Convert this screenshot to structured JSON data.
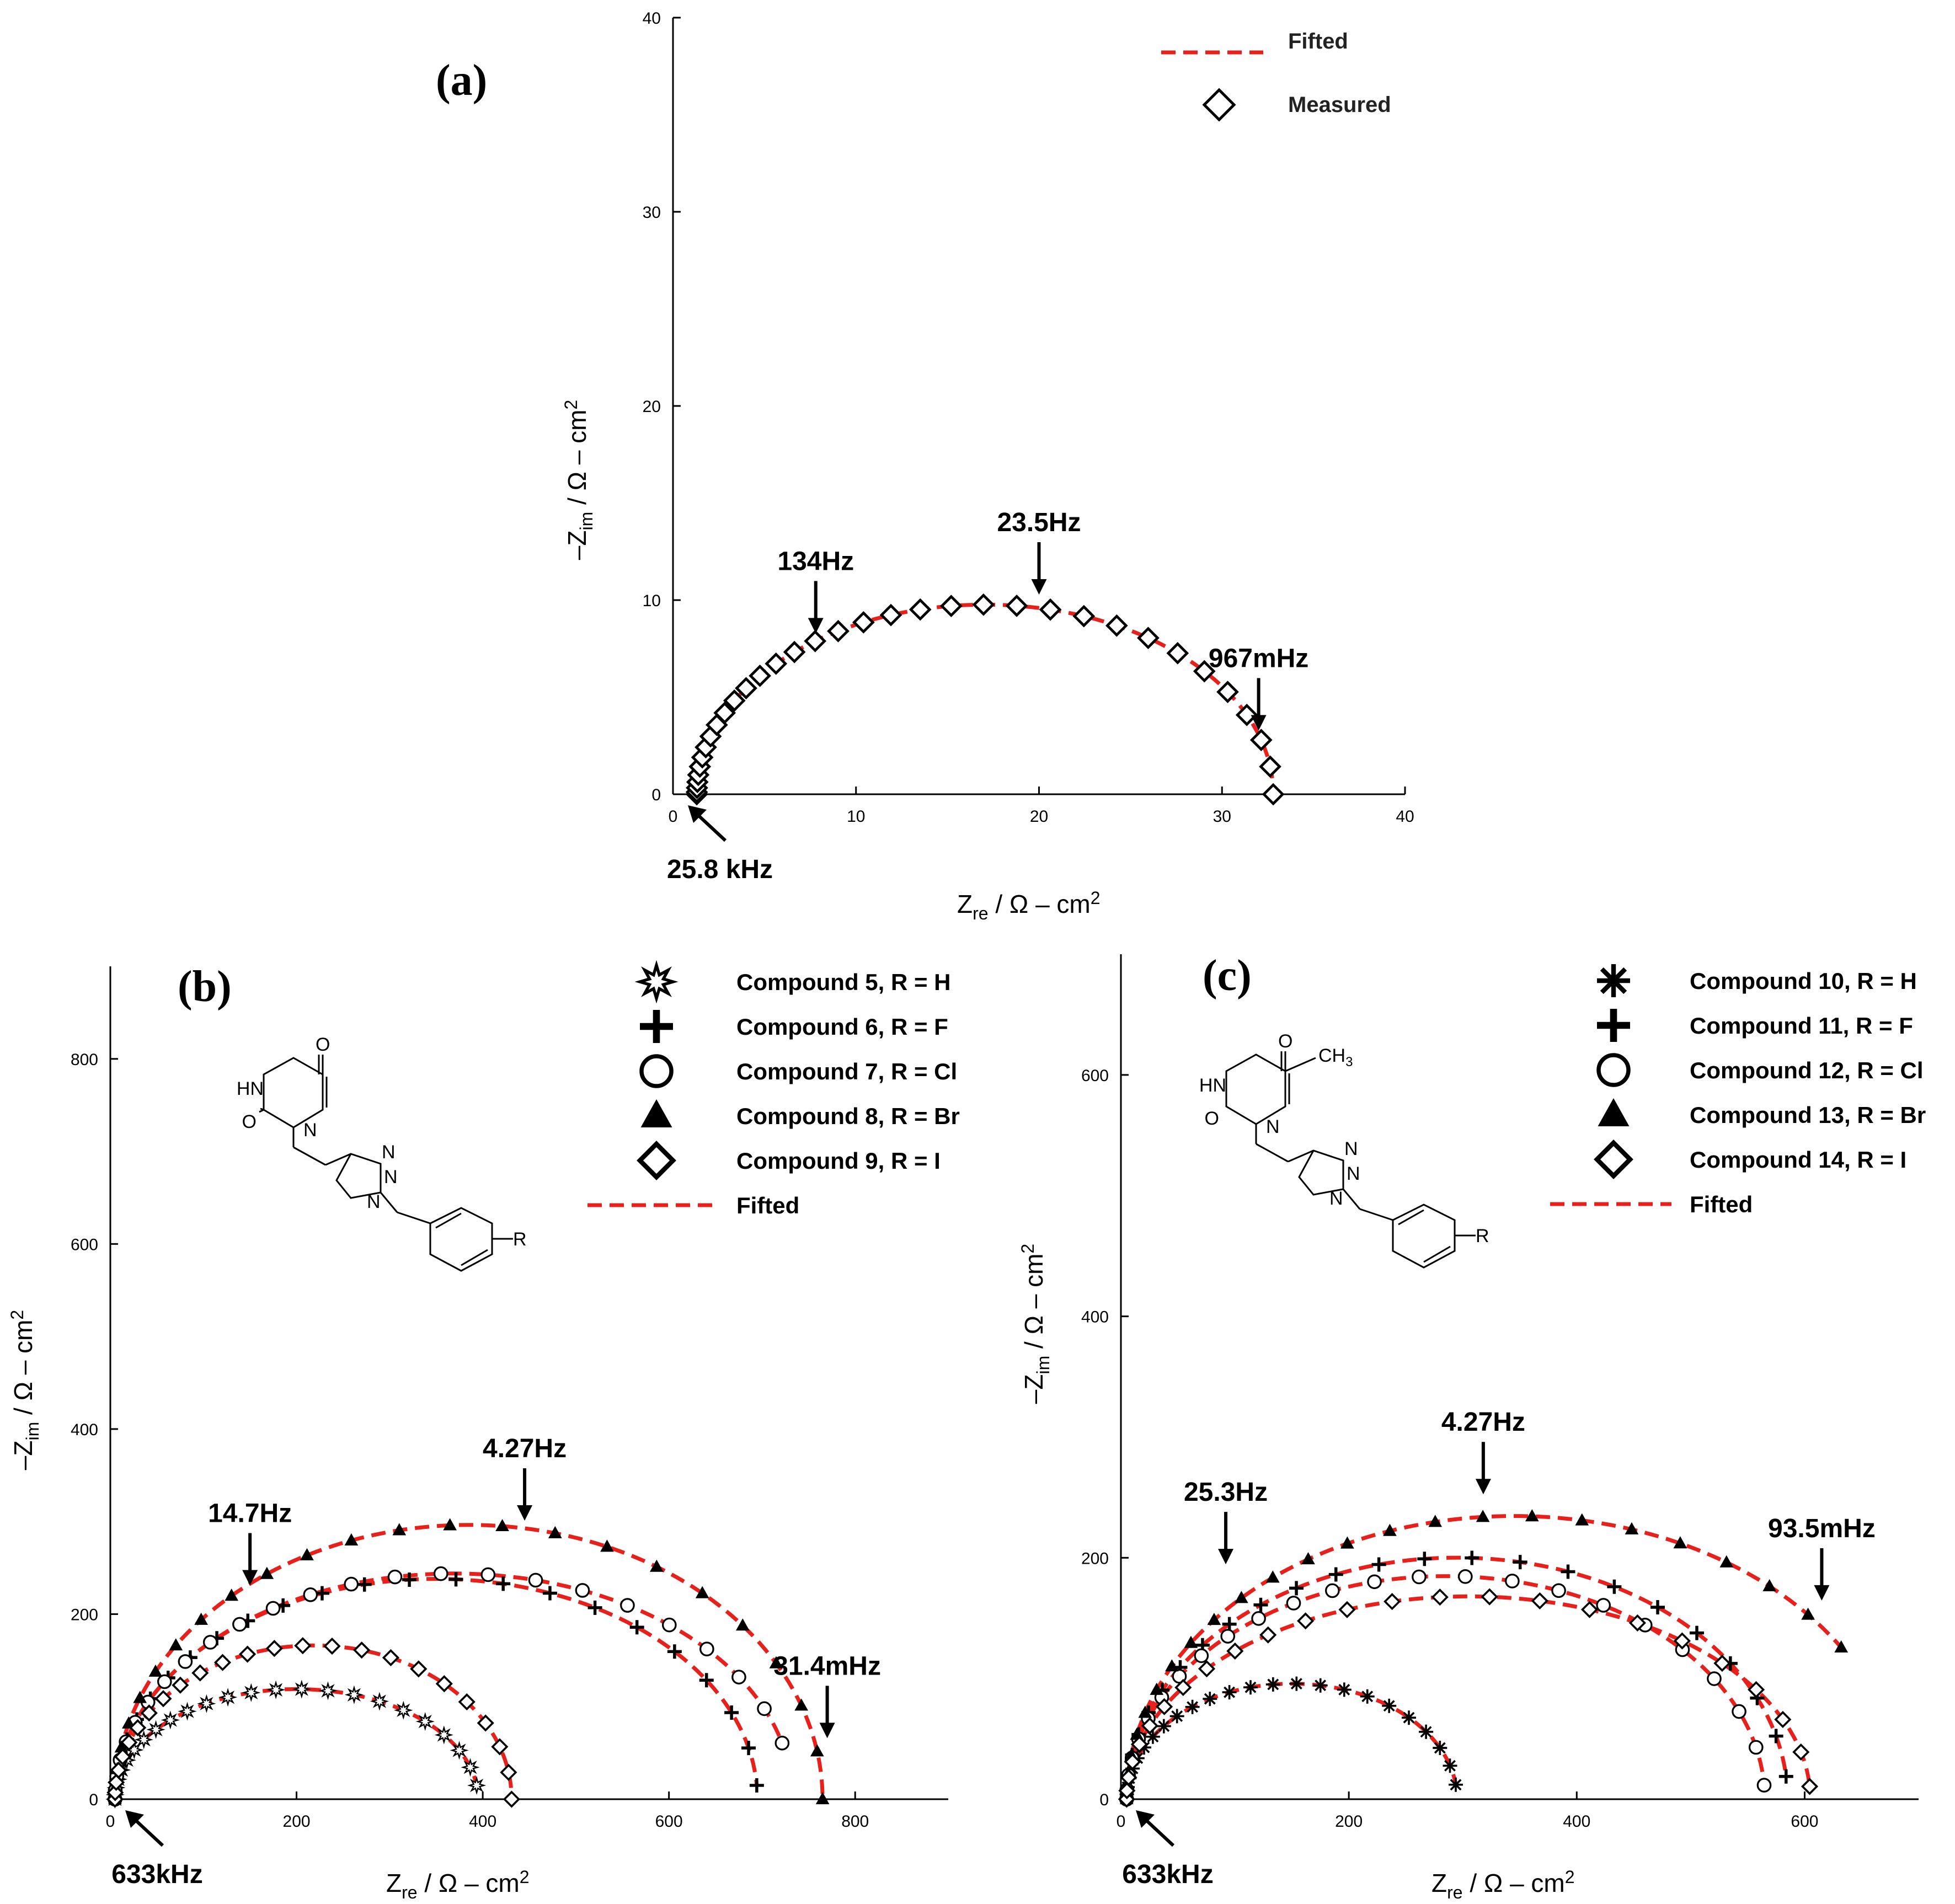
{
  "figure": {
    "panels": [
      {
        "id": "a",
        "label": "(a)",
        "xlabel": {
          "main": "Z",
          "sub": "re",
          "rest": " / Ω – cm",
          "sup": "2"
        },
        "ylabel": {
          "main": "–Z",
          "sub": "im",
          "rest": " / Ω – cm",
          "sup": "2"
        },
        "legend": [
          {
            "kind": "fit",
            "label": "Fifted"
          },
          {
            "kind": "marker",
            "marker": "diamond",
            "label": "Measured"
          }
        ]
      },
      {
        "id": "b",
        "label": "(b)",
        "xlabel": {
          "main": "Z",
          "sub": "re",
          "rest": " / Ω – cm",
          "sup": "2"
        },
        "ylabel": {
          "main": "–Z",
          "sub": "im",
          "rest": " / Ω – cm",
          "sup": "2"
        },
        "legend": [
          {
            "kind": "marker",
            "marker": "star",
            "label": "Compound 5, R = H"
          },
          {
            "kind": "marker",
            "marker": "plus",
            "label": "Compound 6, R = F"
          },
          {
            "kind": "marker",
            "marker": "circle",
            "label": "Compound 7, R = Cl"
          },
          {
            "kind": "marker",
            "marker": "triangle",
            "label": "Compound 8, R = Br"
          },
          {
            "kind": "marker",
            "marker": "diamond",
            "label": "Compound 9, R = I"
          },
          {
            "kind": "fit",
            "label": "Fifted"
          }
        ],
        "structure": {
          "labels": [
            "O",
            "HN",
            "O",
            "N",
            "N",
            "N",
            "N",
            "R"
          ]
        }
      },
      {
        "id": "c",
        "label": "(c)",
        "xlabel": {
          "main": "Z",
          "sub": "re",
          "rest": " / Ω – cm",
          "sup": "2"
        },
        "ylabel": {
          "main": "–Z",
          "sub": "im",
          "rest": " / Ω – cm",
          "sup": "2"
        },
        "legend": [
          {
            "kind": "marker",
            "marker": "asterisk",
            "label": "Compound 10, R = H"
          },
          {
            "kind": "marker",
            "marker": "plus",
            "label": "Compound 11, R = F"
          },
          {
            "kind": "marker",
            "marker": "circle",
            "label": "Compound 12, R = Cl"
          },
          {
            "kind": "marker",
            "marker": "triangle",
            "label": "Compound 13, R = Br"
          },
          {
            "kind": "marker",
            "marker": "diamond",
            "label": "Compound 14, R = I"
          },
          {
            "kind": "fit",
            "label": "Fifted"
          }
        ],
        "structure": {
          "labels": [
            "O",
            "HN",
            "O",
            "N",
            "N",
            "N",
            "N",
            "R"
          ],
          "methyl": {
            "main": "CH",
            "sub": "3"
          }
        }
      }
    ]
  },
  "chart_data": [
    {
      "type": "scatter",
      "title": "(a)",
      "xlabel": "Zre / Ω – cm2",
      "ylabel": "–Zim / Ω – cm2",
      "xlim": [
        0,
        40
      ],
      "ylim": [
        0,
        40
      ],
      "xticks": [
        0,
        10,
        20,
        30,
        40
      ],
      "yticks": [
        0,
        10,
        20,
        30,
        40
      ],
      "series": [
        {
          "name": "Measured",
          "marker": "diamond",
          "fit": {
            "type": "arc",
            "R0": 1.3,
            "Rct": 31.5,
            "depress": 0.62,
            "from": 0,
            "to": 1.0
          }
        }
      ],
      "annotations": [
        {
          "text": "134Hz",
          "x": 7.8,
          "y": 8.0,
          "dir": "down"
        },
        {
          "text": "23.5Hz",
          "x": 20.0,
          "y": 10.0,
          "dir": "down"
        },
        {
          "text": "967mHz",
          "x": 32.0,
          "y": 3.0,
          "dir": "down"
        },
        {
          "text": "25.8 kHz",
          "x": 1.8,
          "y": -0.5,
          "dir": "upleft"
        }
      ]
    },
    {
      "type": "scatter",
      "title": "(b)",
      "xlabel": "Zre / Ω – cm2",
      "ylabel": "–Zim / Ω – cm2",
      "xlim": [
        0,
        900
      ],
      "ylim": [
        0,
        900
      ],
      "xticks": [
        0,
        200,
        400,
        600,
        800
      ],
      "yticks": [
        0,
        200,
        400,
        600,
        800
      ],
      "series": [
        {
          "name": "Compound 5, R = H",
          "marker": "star",
          "fit": {
            "type": "arc",
            "R0": 5,
            "Rct": 390,
            "depress": 0.61,
            "from": 0,
            "to": 0.96
          }
        },
        {
          "name": "Compound 6, R = F",
          "marker": "plus",
          "fit": {
            "type": "arc",
            "R0": 5,
            "Rct": 690,
            "depress": 0.69,
            "from": 0,
            "to": 0.98
          }
        },
        {
          "name": "Compound 7, R = Cl",
          "marker": "circle",
          "fit": {
            "type": "arc",
            "R0": 5,
            "Rct": 728,
            "depress": 0.67,
            "from": 0,
            "to": 0.92
          }
        },
        {
          "name": "Compound 8, R = Br",
          "marker": "triangle",
          "fit": {
            "type": "arc",
            "R0": 5,
            "Rct": 760,
            "depress": 0.78,
            "from": 0,
            "to": 1.0
          }
        },
        {
          "name": "Compound 9, R = I",
          "marker": "diamond",
          "fit": {
            "type": "arc",
            "R0": 5,
            "Rct": 426,
            "depress": 0.78,
            "from": 0,
            "to": 1.0
          }
        }
      ],
      "annotations": [
        {
          "text": "14.7Hz",
          "x": 150,
          "y": 225,
          "dir": "down"
        },
        {
          "text": "4.27Hz",
          "x": 445,
          "y": 295,
          "dir": "down"
        },
        {
          "text": "31.4mHz",
          "x": 770,
          "y": 60,
          "dir": "down"
        },
        {
          "text": "633kHz",
          "x": 20,
          "y": -8,
          "dir": "upleft"
        }
      ]
    },
    {
      "type": "scatter",
      "title": "(c)",
      "xlabel": "Zre / Ω – cm2",
      "ylabel": "–Zim / Ω – cm2",
      "xlim": [
        0,
        700
      ],
      "ylim": [
        0,
        700
      ],
      "xticks": [
        0,
        200,
        400,
        600
      ],
      "yticks": [
        0,
        200,
        400,
        600
      ],
      "series": [
        {
          "name": "Compound 10, R = H",
          "marker": "asterisk",
          "fit": {
            "type": "arc",
            "R0": 5,
            "Rct": 290,
            "depress": 0.66,
            "from": 0,
            "to": 0.96
          }
        },
        {
          "name": "Compound 11, R = F",
          "marker": "plus",
          "fit": {
            "type": "arc",
            "R0": 5,
            "Rct": 580,
            "depress": 0.69,
            "from": 0,
            "to": 0.97
          }
        },
        {
          "name": "Compound 12, R = Cl",
          "marker": "circle",
          "fit": {
            "type": "arc",
            "R0": 5,
            "Rct": 560,
            "depress": 0.66,
            "from": 0,
            "to": 0.98
          }
        },
        {
          "name": "Compound 13, R = Br",
          "marker": "triangle",
          "fit": {
            "type": "arc",
            "R0": 5,
            "Rct": 680,
            "depress": 0.69,
            "from": 0,
            "to": 0.82
          }
        },
        {
          "name": "Compound 14, R = I",
          "marker": "diamond",
          "fit": {
            "type": "arc",
            "R0": 5,
            "Rct": 600,
            "depress": 0.56,
            "from": 0,
            "to": 0.98
          }
        }
      ],
      "annotations": [
        {
          "text": "25.3Hz",
          "x": 92,
          "y": 190,
          "dir": "down"
        },
        {
          "text": "4.27Hz",
          "x": 318,
          "y": 248,
          "dir": "down"
        },
        {
          "text": "93.5mHz",
          "x": 615,
          "y": 160,
          "dir": "down"
        },
        {
          "text": "633kHz",
          "x": 15,
          "y": -6,
          "dir": "upleft"
        }
      ]
    }
  ]
}
